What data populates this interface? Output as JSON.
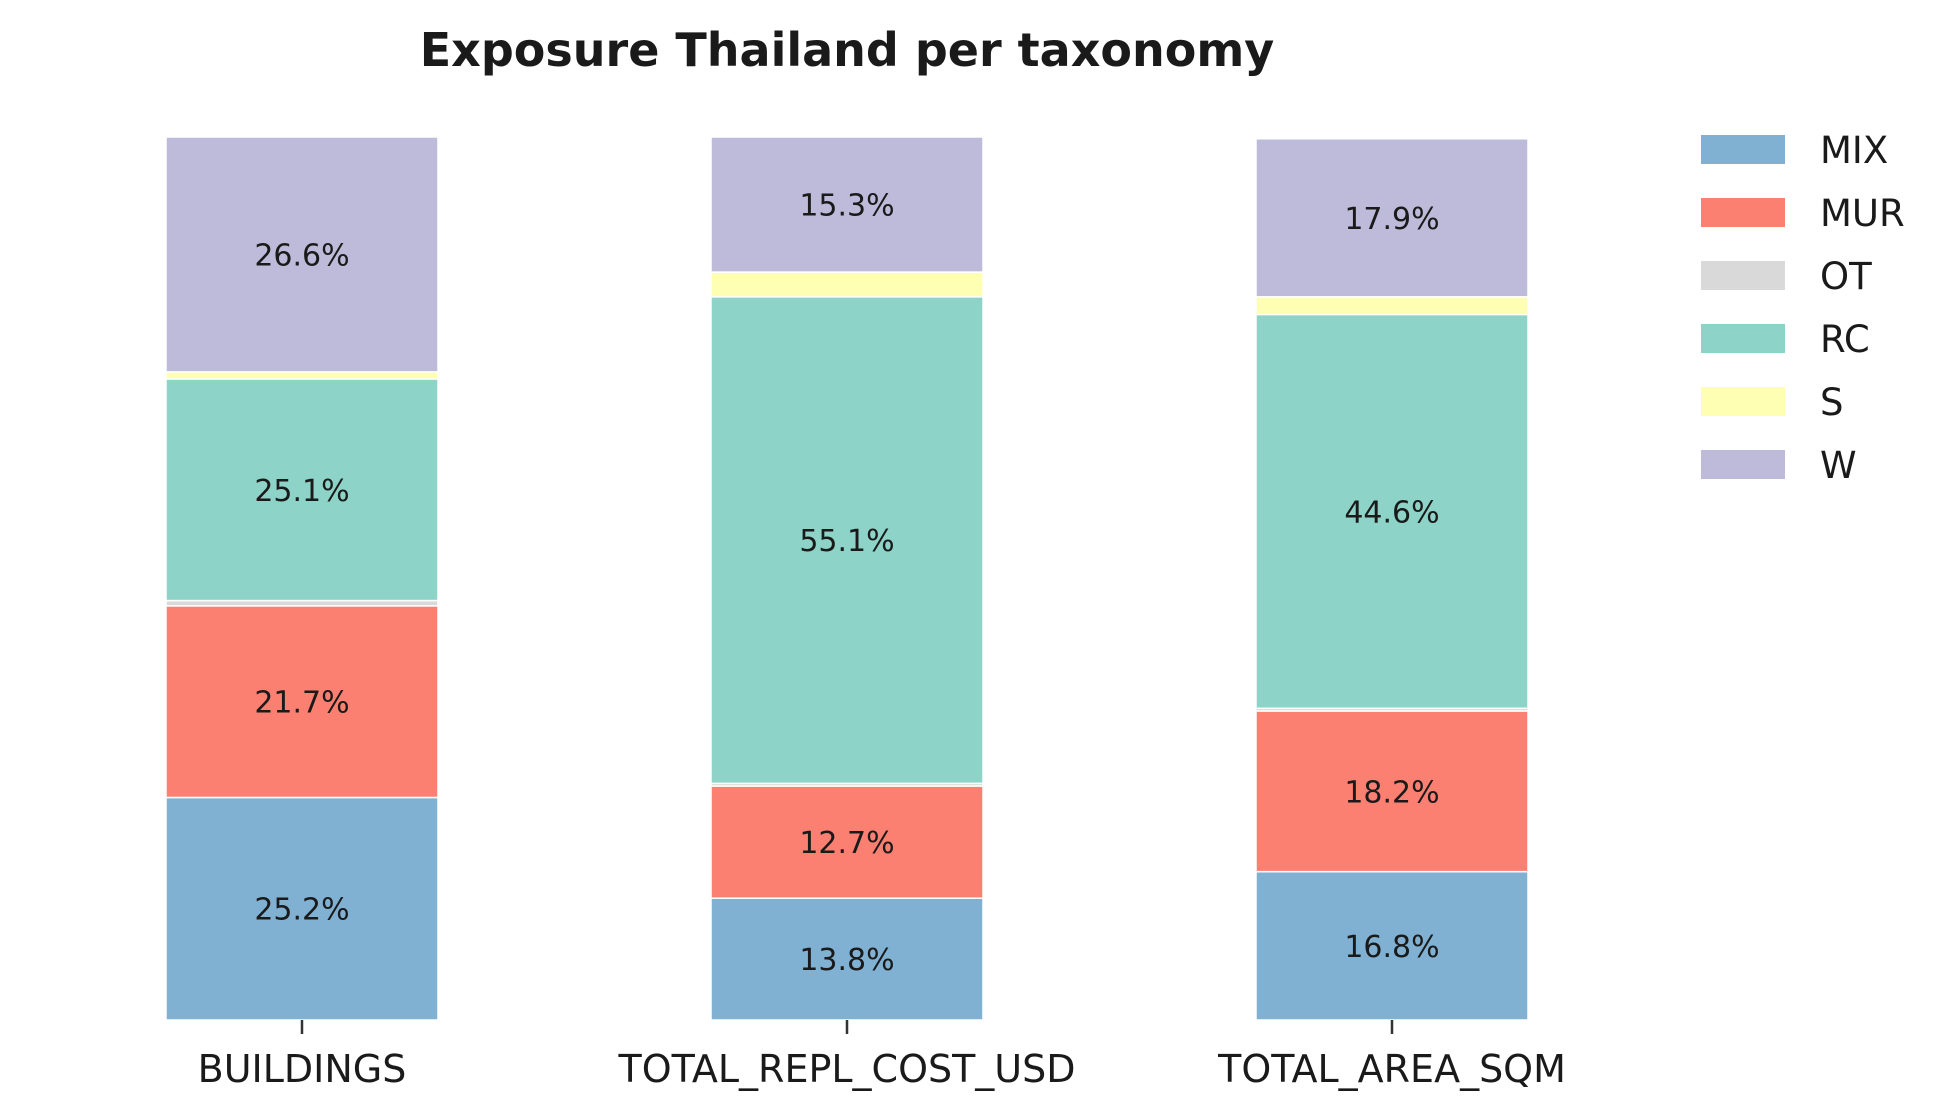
{
  "chart_data": {
    "type": "bar",
    "stacked": true,
    "normalized_percent": true,
    "title": "Exposure Thailand per taxonomy",
    "xlabel": "",
    "ylabel": "",
    "ylim": [
      0,
      100
    ],
    "grid": false,
    "legend_position": "top-right outside",
    "categories": [
      "BUILDINGS",
      "TOTAL_REPL_COST_USD",
      "TOTAL_AREA_SQM"
    ],
    "series": [
      {
        "name": "MIX",
        "color": "#80b1d3",
        "values": [
          25.2,
          13.8,
          16.8
        ],
        "labels": [
          "25.2%",
          "13.8%",
          "16.8%"
        ]
      },
      {
        "name": "MUR",
        "color": "#fb8072",
        "values": [
          21.7,
          12.7,
          18.2
        ],
        "labels": [
          "21.7%",
          "12.7%",
          "18.2%"
        ]
      },
      {
        "name": "OT",
        "color": "#d9d9d9",
        "values": [
          0.6,
          0.3,
          0.3
        ],
        "labels": [
          "",
          "",
          ""
        ]
      },
      {
        "name": "RC",
        "color": "#8dd3c7",
        "values": [
          25.1,
          55.1,
          44.6
        ],
        "labels": [
          "25.1%",
          "55.1%",
          "44.6%"
        ]
      },
      {
        "name": "S",
        "color": "#ffffb3",
        "values": [
          0.8,
          2.8,
          2.0
        ],
        "labels": [
          "",
          "",
          ""
        ]
      },
      {
        "name": "W",
        "color": "#bebada",
        "values": [
          26.6,
          15.3,
          17.9
        ],
        "labels": [
          "26.6%",
          "15.3%",
          "17.9%"
        ]
      }
    ]
  }
}
